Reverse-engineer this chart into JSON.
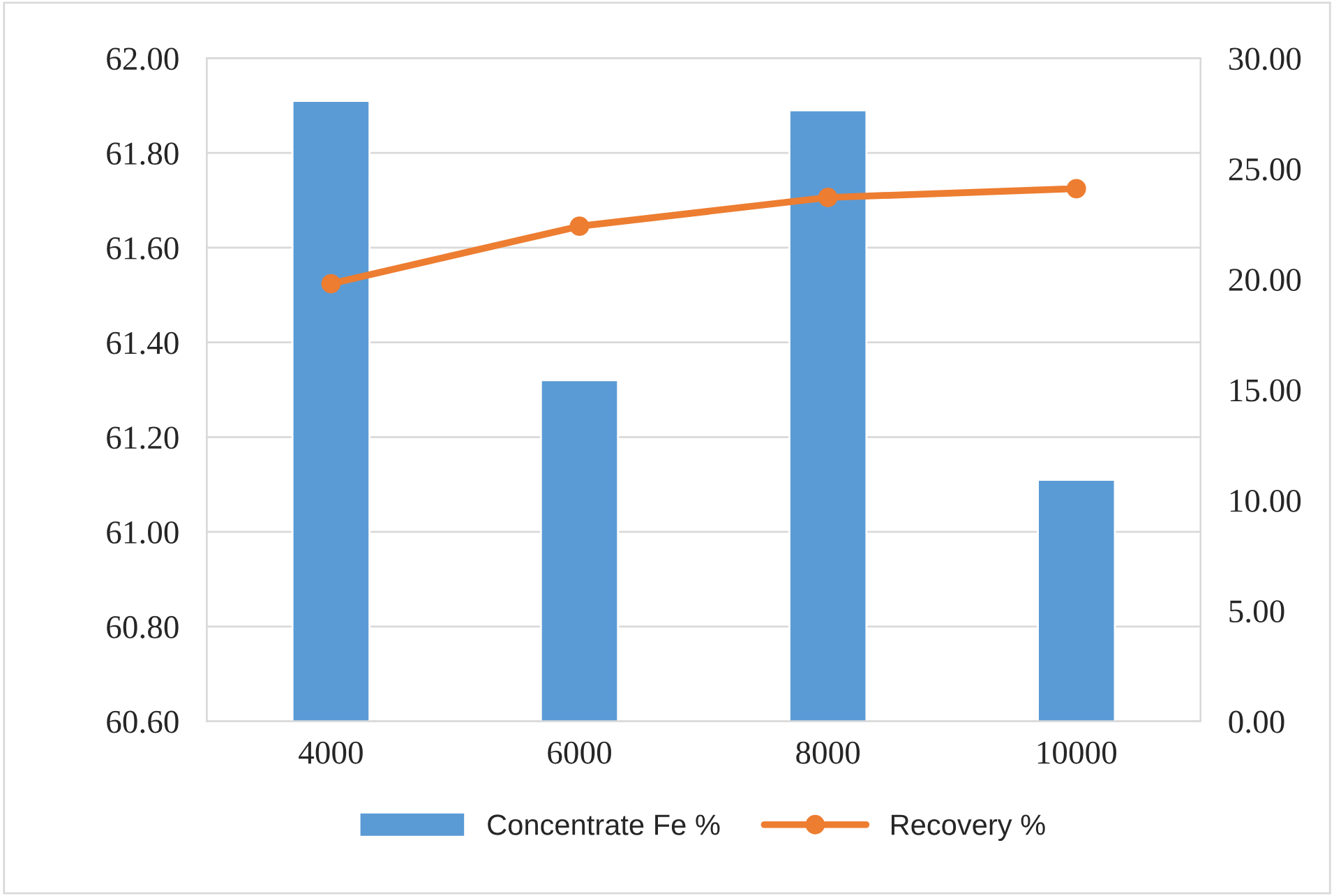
{
  "chart_data": {
    "type": "bar",
    "categories": [
      "4000",
      "6000",
      "8000",
      "10000"
    ],
    "series": [
      {
        "name": "Concentrate Fe %",
        "color": "#5b9bd5",
        "values": [
          61.91,
          61.32,
          61.89,
          61.11
        ]
      },
      {
        "name": "Recovery %",
        "color": "#ed7d31",
        "type": "line",
        "axis": "y2",
        "marker": "circle",
        "line_style": "solid",
        "values": [
          19.8,
          22.4,
          23.7,
          24.1
        ]
      }
    ],
    "ylim": [
      60.6,
      62.0
    ],
    "yticks": [
      {
        "value": 60.6,
        "label": "60.60"
      },
      {
        "value": 60.8,
        "label": "60.80"
      },
      {
        "value": 61.0,
        "label": "61.00"
      },
      {
        "value": 61.2,
        "label": "61.20"
      },
      {
        "value": 61.4,
        "label": "61.40"
      },
      {
        "value": 61.6,
        "label": "61.60"
      },
      {
        "value": 61.8,
        "label": "61.80"
      },
      {
        "value": 62.0,
        "label": "62.00"
      }
    ],
    "y2lim": [
      0,
      30
    ],
    "y2ticks": [
      {
        "value": 0,
        "label": "0.00"
      },
      {
        "value": 5,
        "label": "5.00"
      },
      {
        "value": 10,
        "label": "10.00"
      },
      {
        "value": 15,
        "label": "15.00"
      },
      {
        "value": 20,
        "label": "20.00"
      },
      {
        "value": 25,
        "label": "25.00"
      },
      {
        "value": 30,
        "label": "30.00"
      }
    ],
    "grid": "y",
    "legend": "bottom"
  }
}
